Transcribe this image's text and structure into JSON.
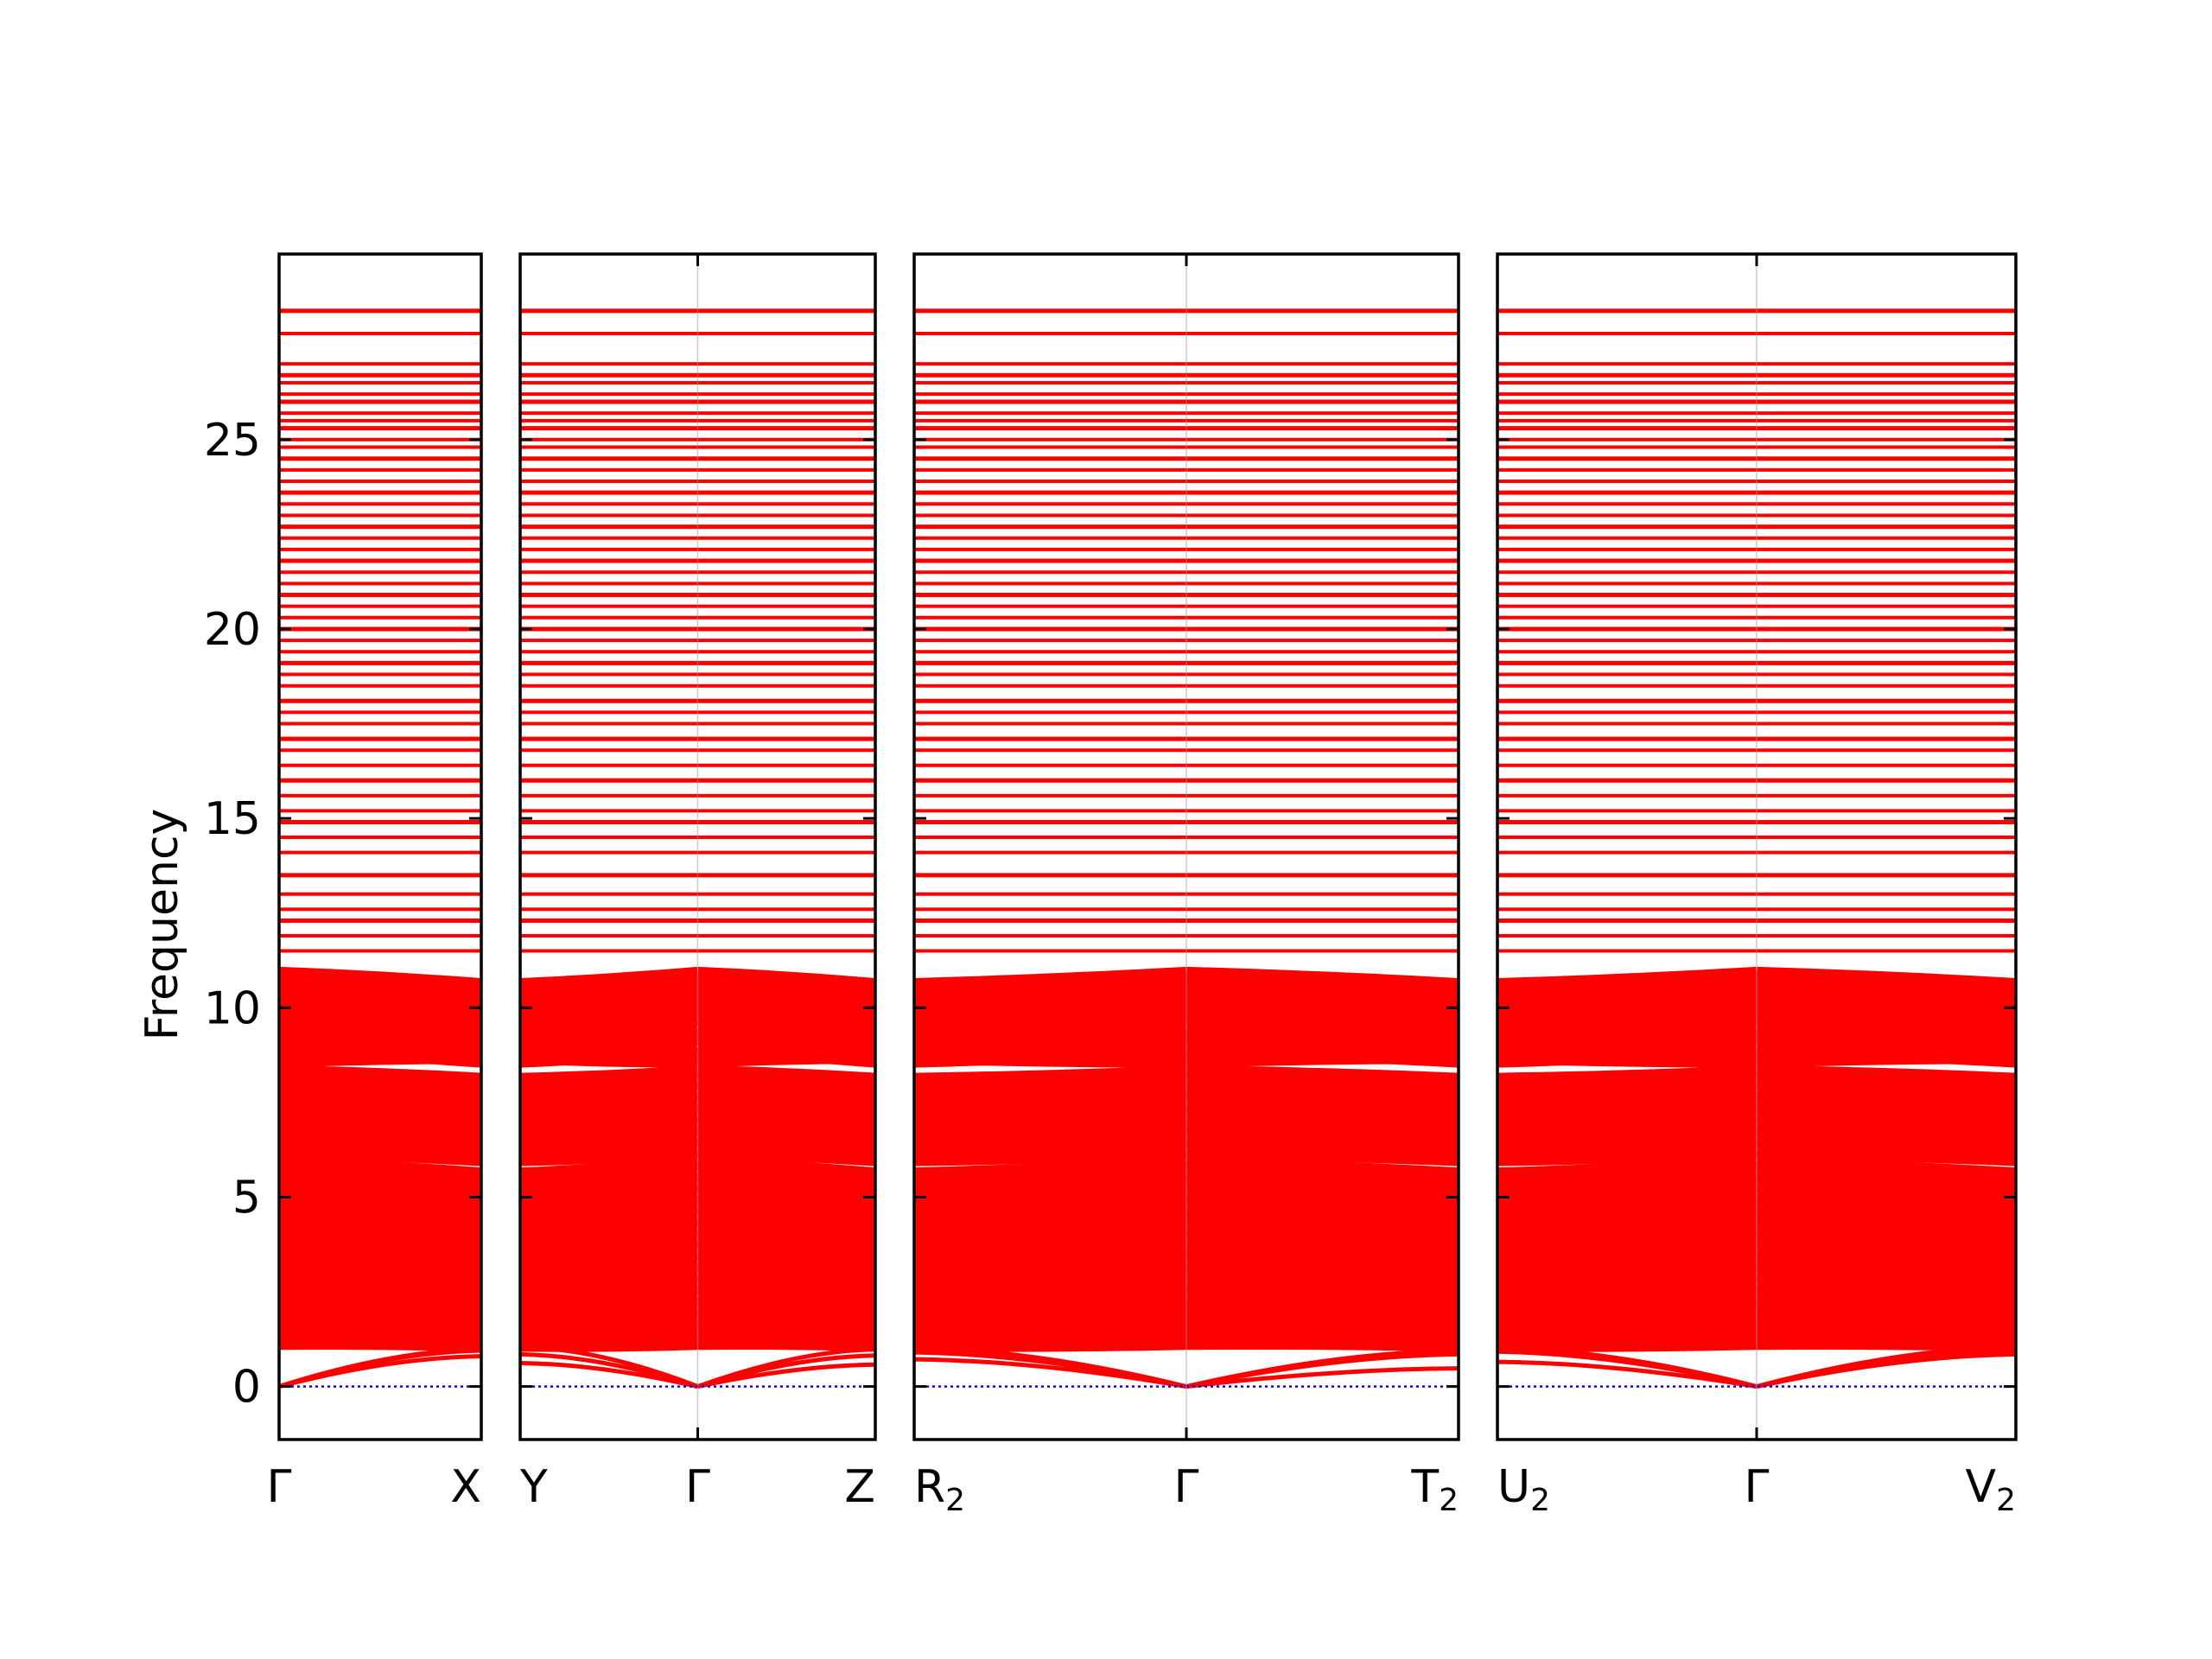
{
  "chart_data": {
    "type": "line",
    "title": "",
    "ylabel": "Frequency",
    "ylim": [
      -1.4,
      29.9
    ],
    "yticks": [
      0,
      5,
      10,
      15,
      20,
      25
    ],
    "band_color": "#ff0000",
    "zero_line_color": "#0000ff",
    "panels": [
      {
        "id": "gx",
        "k_labels": [
          {
            "main": "Γ",
            "sub": ""
          },
          {
            "main": "X",
            "sub": ""
          }
        ],
        "segments": [
          {
            "start": "Γ",
            "end": "X",
            "acoustic_end": [
              0.8,
              0.95,
              0.99
            ]
          }
        ]
      },
      {
        "id": "ygz",
        "k_labels": [
          {
            "main": "Y",
            "sub": ""
          },
          {
            "main": "Γ",
            "sub": ""
          },
          {
            "main": "Z",
            "sub": ""
          }
        ],
        "segments": [
          {
            "start": "Y",
            "end": "Γ",
            "acoustic_start": [
              0.62,
              0.85,
              1.05
            ]
          },
          {
            "start": "Γ",
            "end": "Z",
            "acoustic_end": [
              0.58,
              0.82,
              0.98
            ]
          }
        ]
      },
      {
        "id": "r2gt2",
        "k_labels": [
          {
            "main": "R",
            "sub": "2"
          },
          {
            "main": "Γ",
            "sub": ""
          },
          {
            "main": "T",
            "sub": "2"
          }
        ],
        "segments": [
          {
            "start": "R2",
            "end": "Γ",
            "acoustic_start": [
              0.72,
              0.9,
              1.02
            ]
          },
          {
            "start": "Γ",
            "end": "T2",
            "acoustic_end": [
              0.48,
              0.85,
              0.95
            ]
          }
        ]
      },
      {
        "id": "u2gv2",
        "k_labels": [
          {
            "main": "U",
            "sub": "2"
          },
          {
            "main": "Γ",
            "sub": ""
          },
          {
            "main": "V",
            "sub": "2"
          }
        ],
        "segments": [
          {
            "start": "U2",
            "end": "Γ",
            "acoustic_start": [
              0.65,
              0.92,
              1.02
            ]
          },
          {
            "start": "Γ",
            "end": "V2",
            "acoustic_end": [
              0.85,
              0.95,
              1.05
            ]
          }
        ]
      }
    ],
    "flat_bands": [
      28.4,
      27.8,
      27.0,
      26.7,
      26.5,
      26.2,
      26.0,
      25.7,
      25.5,
      25.3,
      25.0,
      24.8,
      24.5,
      24.2,
      23.9,
      23.6,
      23.3,
      23.0,
      22.7,
      22.4,
      22.1,
      21.8,
      21.5,
      21.2,
      20.9,
      20.6,
      20.3,
      20.0,
      19.7,
      19.4,
      19.1,
      18.8,
      18.5,
      18.1,
      17.8,
      17.5,
      17.1,
      16.8,
      16.4,
      16.0,
      15.6,
      15.2,
      14.9,
      14.5,
      14.1,
      13.5,
      13.0,
      12.6,
      12.3,
      11.9,
      11.5
    ],
    "dispersive_bands": [
      [
        10.9,
        10.6
      ],
      [
        10.7,
        10.4
      ],
      [
        10.5,
        10.2
      ],
      [
        10.3,
        10.0
      ],
      [
        10.1,
        9.8
      ],
      [
        9.9,
        9.6
      ],
      [
        9.7,
        9.4
      ],
      [
        9.4,
        9.1
      ],
      [
        9.2,
        8.9
      ],
      [
        8.9,
        8.6
      ],
      [
        8.6,
        8.7
      ],
      [
        8.3,
        8.1
      ],
      [
        8.0,
        7.8
      ],
      [
        7.7,
        7.5
      ],
      [
        7.4,
        7.2
      ],
      [
        7.1,
        6.9
      ],
      [
        6.8,
        6.6
      ],
      [
        6.5,
        6.3
      ],
      [
        6.2,
        6.0
      ],
      [
        5.9,
        5.6
      ],
      [
        5.6,
        5.4
      ],
      [
        5.3,
        5.1
      ],
      [
        5.0,
        4.8
      ],
      [
        4.7,
        4.5
      ],
      [
        4.4,
        4.2
      ],
      [
        4.1,
        3.9
      ],
      [
        3.8,
        3.6
      ],
      [
        3.5,
        3.3
      ],
      [
        3.2,
        3.0
      ],
      [
        2.9,
        2.7
      ],
      [
        2.6,
        2.4
      ],
      [
        2.3,
        2.1
      ],
      [
        2.0,
        1.9
      ],
      [
        1.7,
        1.6
      ],
      [
        1.4,
        1.3
      ],
      [
        1.15,
        1.1
      ]
    ]
  }
}
